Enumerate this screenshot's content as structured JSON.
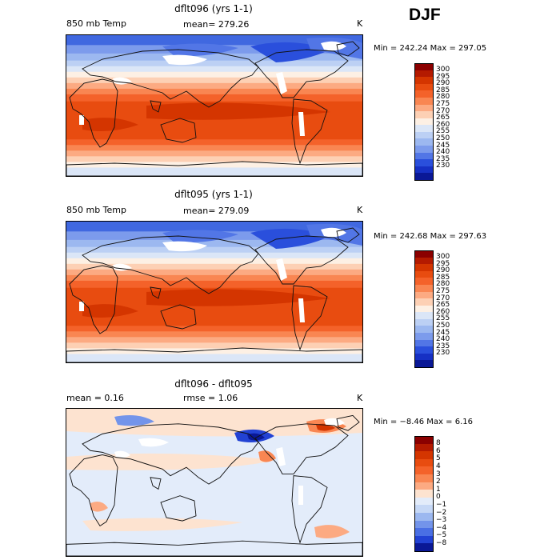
{
  "season": "DJF",
  "panels": [
    {
      "title": "dflt096 (yrs 1-1)",
      "left_label": "850 mb Temp",
      "stat1": "mean=  279.26",
      "stat2": "",
      "units": "K",
      "minmax": "Min = 242.24  Max = 297.05",
      "kind": "temp"
    },
    {
      "title": "dflt095 (yrs 1-1)",
      "left_label": "850 mb Temp",
      "stat1": "mean=  279.09",
      "stat2": "",
      "units": "K",
      "minmax": "Min = 242.68  Max = 297.63",
      "kind": "temp"
    },
    {
      "title": "dflt096 - dflt095",
      "left_label": "mean =    0.16",
      "stat1": "rmse =    1.06",
      "stat2": "",
      "units": "K",
      "minmax": "Min =  −8.46  Max =   6.16",
      "kind": "diff"
    }
  ],
  "colorbars": {
    "temp": {
      "labels": [
        "300",
        "295",
        "290",
        "285",
        "280",
        "275",
        "270",
        "265",
        "260",
        "255",
        "250",
        "245",
        "240",
        "235",
        "230"
      ],
      "colors": [
        "#8b0000",
        "#b41a00",
        "#d43500",
        "#e84c10",
        "#f4622a",
        "#f98652",
        "#fcaa82",
        "#fdd0b4",
        "#fdf0e4",
        "#dbe6f7",
        "#bcd0f4",
        "#9cb8f0",
        "#7c9bec",
        "#5276e6",
        "#2a4fdc",
        "#1630c4",
        "#0a1896"
      ]
    },
    "diff": {
      "labels": [
        "8",
        "6",
        "5",
        "4",
        "3",
        "2",
        "1",
        "0",
        "−1",
        "−2",
        "−3",
        "−4",
        "−5",
        "−8"
      ],
      "colors": [
        "#8b0000",
        "#b41a00",
        "#d43500",
        "#e84c10",
        "#f4622a",
        "#f98652",
        "#fcaa82",
        "#fde3d0",
        "#e3ecfa",
        "#c6d8f6",
        "#9cb8f0",
        "#7394ea",
        "#4a6fe4",
        "#2242d4",
        "#0a1896"
      ]
    }
  }
}
